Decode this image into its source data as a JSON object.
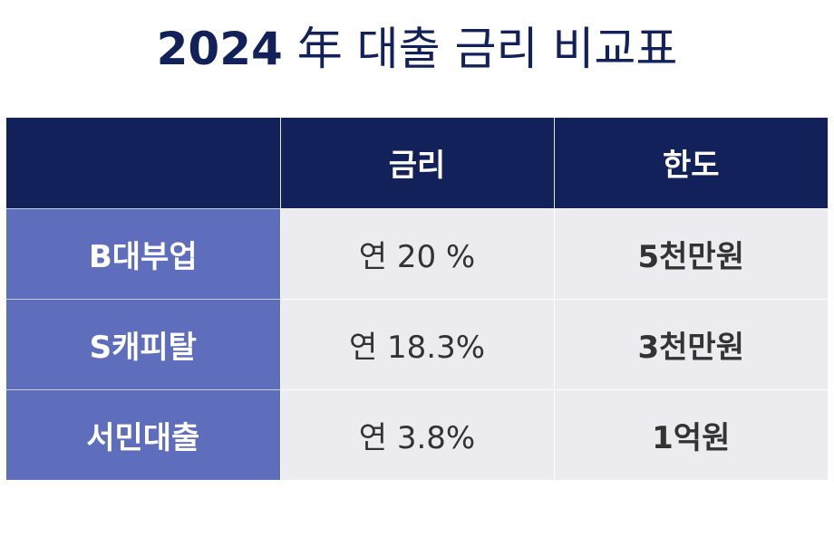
{
  "title": {
    "year": "2024",
    "rest": "年 대출 금리 비교표"
  },
  "table": {
    "headers": [
      "",
      "금리",
      "한도"
    ],
    "rows": [
      {
        "name": "B대부업",
        "rate": "연 20 %",
        "limit": "5천만원"
      },
      {
        "name": "S캐피탈",
        "rate": "연 18.3%",
        "limit": "3천만원"
      },
      {
        "name": "서민대출",
        "rate": "연 3.8%",
        "limit": "1억원"
      }
    ]
  },
  "colors": {
    "header_bg": "#13215a",
    "row_label_bg": "#5f6dbd",
    "cell_bg": "#ebebf0",
    "title_text": "#13215a"
  }
}
